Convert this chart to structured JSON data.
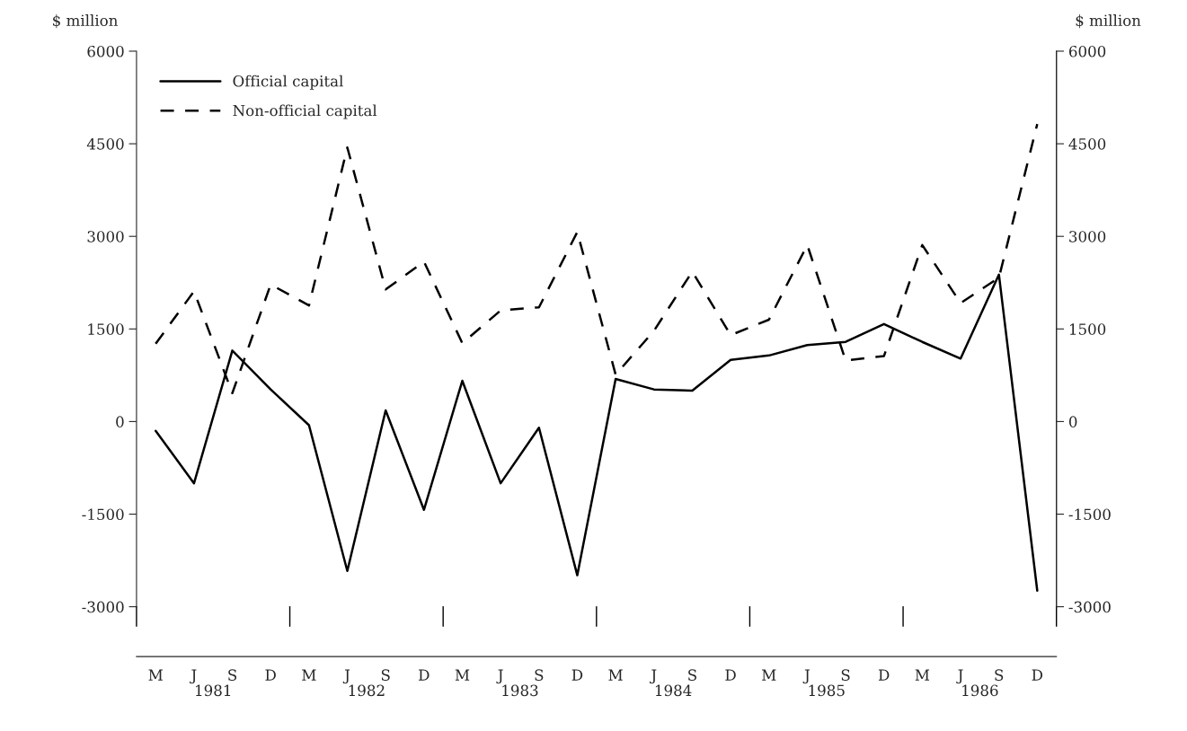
{
  "chart_data": {
    "type": "line",
    "categories": [
      "M",
      "J",
      "S",
      "D",
      "M",
      "J",
      "S",
      "D",
      "M",
      "J",
      "S",
      "D",
      "M",
      "J",
      "S",
      "D",
      "M",
      "J",
      "S",
      "D",
      "M",
      "J",
      "S",
      "D"
    ],
    "series": [
      {
        "name": "Official capital",
        "color": "#000000",
        "line_style": "solid",
        "values": [
          -150,
          -1000,
          1150,
          520,
          -60,
          -2420,
          180,
          -1430,
          660,
          -1000,
          -100,
          -2490,
          690,
          520,
          500,
          1000,
          1070,
          1240,
          1290,
          1580,
          1290,
          1020,
          2380,
          -2740
        ]
      },
      {
        "name": "Non-official capital",
        "color": "#000000",
        "line_style": "dashed",
        "values": [
          1260,
          2110,
          460,
          2220,
          1880,
          4440,
          2140,
          2590,
          1270,
          1800,
          1850,
          3070,
          760,
          1470,
          2430,
          1400,
          1650,
          2860,
          990,
          1060,
          2860,
          1920,
          2330,
          4820
        ]
      }
    ],
    "ylabel": "$ million",
    "y2label": "$ million",
    "ylim": [
      -3000,
      6000
    ],
    "yticks": [
      -3000,
      -1500,
      0,
      1500,
      3000,
      4500,
      6000
    ],
    "y2lim": [
      -3000,
      6000
    ],
    "y2ticks": [
      -3000,
      -1500,
      0,
      1500,
      3000,
      4500,
      6000
    ],
    "annotations": [
      "1981",
      "1982",
      "1983",
      "1984",
      "1985",
      "1986"
    ],
    "legend": "top left",
    "grid": false,
    "marker": "none"
  }
}
